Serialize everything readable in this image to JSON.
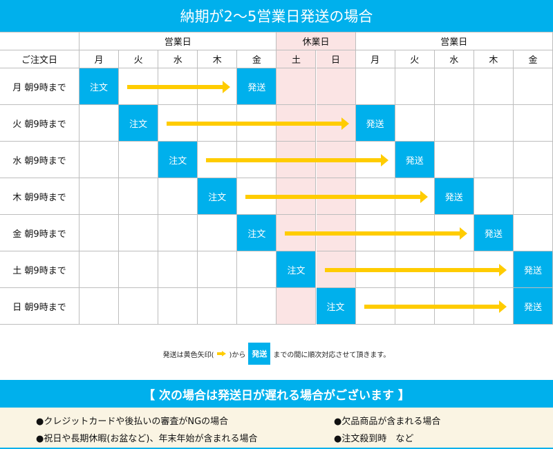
{
  "title": "納期が2～5営業日発送の場合",
  "header": {
    "groups": [
      {
        "label": "営業日",
        "span": 5,
        "holiday": false
      },
      {
        "label": "休業日",
        "span": 2,
        "holiday": true
      },
      {
        "label": "営業日",
        "span": 5,
        "holiday": false
      }
    ],
    "order_day_label": "ご注文日",
    "days": [
      "月",
      "火",
      "水",
      "木",
      "金",
      "土",
      "日",
      "月",
      "火",
      "水",
      "木",
      "金"
    ]
  },
  "rows": [
    {
      "label": "月 朝9時まで",
      "order": 0,
      "ship": 4
    },
    {
      "label": "火 朝9時まで",
      "order": 1,
      "ship": 7
    },
    {
      "label": "水 朝9時まで",
      "order": 2,
      "ship": 8
    },
    {
      "label": "木 朝9時まで",
      "order": 3,
      "ship": 9
    },
    {
      "label": "金 朝9時まで",
      "order": 4,
      "ship": 10
    },
    {
      "label": "土 朝9時まで",
      "order": 5,
      "ship": 11
    },
    {
      "label": "日 朝9時まで",
      "order": 6,
      "ship": 11
    }
  ],
  "order_label": "注文",
  "ship_label": "発送",
  "note": {
    "before": "発送は黄色矢印(",
    "middle": ")から",
    "badge": "発送",
    "after": "までの間に順次対応させて頂きます。"
  },
  "banner": "【 次の場合は発送日が遅れる場合がございます 】",
  "cases": [
    "●クレジットカードや後払いの審査がNGの場合",
    "●欠品商品が含まれる場合",
    "●祝日や長期休暇(お盆など)、年末年始が含まれる場合",
    "●注文殺到時　など"
  ],
  "colors": {
    "accent": "#00b0ec",
    "arrow": "#ffcc00",
    "holiday": "#fbe4e4",
    "cases_bg": "#faf4e3"
  }
}
